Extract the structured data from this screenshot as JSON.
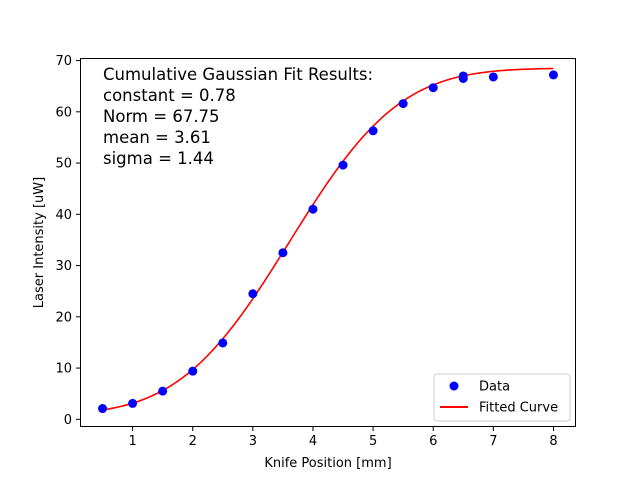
{
  "chart_data": {
    "type": "scatter",
    "title": "",
    "xlabel": "Knife Position [mm]",
    "ylabel": "Laser Intensity [uW]",
    "xlim": [
      0.125,
      8.375
    ],
    "ylim": [
      -1.5,
      70.5
    ],
    "xticks": [
      1,
      2,
      3,
      4,
      5,
      6,
      7,
      8
    ],
    "yticks": [
      0,
      10,
      20,
      30,
      40,
      50,
      60,
      70
    ],
    "grid": false,
    "legend_placement": "lower-right",
    "annotation": {
      "placement": "top-left",
      "lines": [
        "Cumulative Gaussian Fit Results:",
        "constant = 0.78",
        "Norm = 67.75",
        "mean = 3.61",
        "sigma = 1.44"
      ]
    },
    "fit": {
      "function": "cumulative-gaussian",
      "constant": 0.78,
      "norm": 67.75,
      "mean": 3.61,
      "sigma": 1.44
    },
    "series": [
      {
        "name": "Data",
        "kind": "points",
        "color": "#0000ff",
        "x": [
          0.5,
          1.0,
          1.5,
          2.0,
          2.5,
          3.0,
          3.5,
          4.0,
          4.5,
          5.0,
          5.5,
          6.0,
          6.5,
          6.5,
          7.0,
          8.0
        ],
        "y": [
          2.1,
          3.1,
          5.5,
          9.4,
          14.9,
          24.5,
          32.5,
          41.0,
          49.6,
          56.3,
          61.6,
          64.7,
          66.5,
          67.0,
          66.8,
          67.2
        ]
      },
      {
        "name": "Fitted Curve",
        "kind": "line",
        "color": "#ff0000"
      }
    ]
  }
}
